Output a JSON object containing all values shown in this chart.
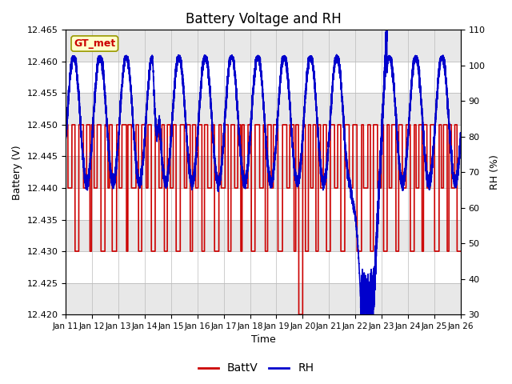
{
  "title": "Battery Voltage and RH",
  "xlabel": "Time",
  "ylabel_left": "Battery (V)",
  "ylabel_right": "RH (%)",
  "ylim_left": [
    12.42,
    12.465
  ],
  "ylim_right": [
    30,
    110
  ],
  "yticks_left": [
    12.42,
    12.425,
    12.43,
    12.435,
    12.44,
    12.445,
    12.45,
    12.455,
    12.46,
    12.465
  ],
  "yticks_right": [
    30,
    40,
    50,
    60,
    70,
    80,
    90,
    100,
    110
  ],
  "xtick_labels": [
    "Jan 11",
    "Jan 12",
    "Jan 13",
    "Jan 14",
    "Jan 15",
    "Jan 16",
    "Jan 17",
    "Jan 18",
    "Jan 19",
    "Jan 20",
    "Jan 21",
    "Jan 22",
    "Jan 23",
    "Jan 24",
    "Jan 25",
    "Jan 26"
  ],
  "color_battv": "#cc0000",
  "color_rh": "#0000cc",
  "plot_bg_upper": "#e8e8e8",
  "plot_bg_lower": "#d8d8d8",
  "grid_color": "#bbbbbb",
  "annotation_text": "GT_met",
  "annotation_color": "#cc0000",
  "annotation_bg": "#ffffcc",
  "legend_labels": [
    "BattV",
    "RH"
  ],
  "title_fontsize": 12,
  "fig_bg": "#ffffff"
}
